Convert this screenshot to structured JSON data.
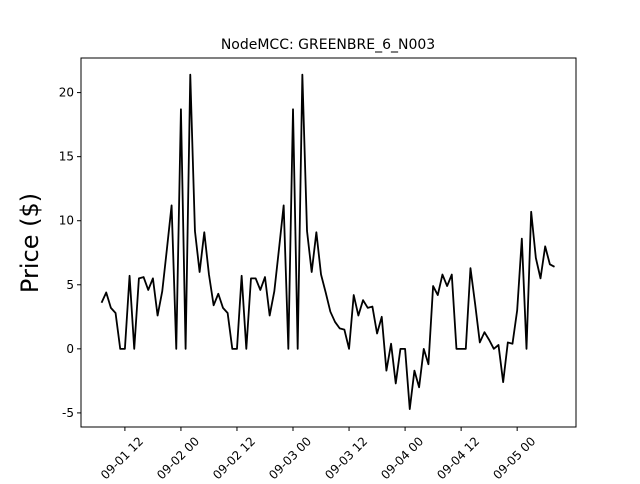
{
  "chart_data": {
    "type": "line",
    "title": "NodeMCC: GREENBRE_6_N003",
    "y_label": "Price ($)",
    "x": [
      7,
      8,
      9,
      10,
      11,
      12,
      13,
      14,
      15,
      16,
      17,
      18,
      19,
      20,
      21,
      22,
      23,
      24,
      25,
      26,
      27,
      28,
      29,
      30,
      31,
      32,
      33,
      34,
      35,
      36,
      37,
      38,
      39,
      40,
      41,
      42,
      43,
      44,
      45,
      46,
      47,
      48,
      49,
      50,
      51,
      52,
      53,
      54,
      55,
      56,
      57,
      58,
      59,
      60,
      61,
      62,
      63,
      64,
      65,
      66,
      67,
      68,
      69,
      70,
      71,
      72,
      73,
      74,
      75,
      76,
      77,
      78,
      79,
      80,
      81,
      82,
      83,
      84,
      85,
      86,
      87,
      88,
      89,
      90,
      91,
      92,
      93,
      94,
      95,
      96,
      97,
      98,
      99,
      100,
      101,
      102,
      103,
      104
    ],
    "series": [
      {
        "color": "#000000",
        "values": [
          3.6,
          4.4,
          3.2,
          2.8,
          0,
          0,
          5.7,
          0,
          5.5,
          5.6,
          4.6,
          5.5,
          2.6,
          4.5,
          7.8,
          11.2,
          0,
          18.7,
          0,
          21.4,
          9.2,
          6.0,
          9.1,
          5.8,
          3.4,
          4.3,
          3.2,
          2.8,
          0,
          0,
          5.7,
          0,
          5.5,
          5.5,
          4.6,
          5.6,
          2.6,
          4.5,
          7.8,
          11.2,
          0,
          18.7,
          0,
          21.4,
          9.2,
          6.0,
          9.1,
          5.8,
          4.4,
          2.9,
          2.1,
          1.6,
          1.5,
          0,
          4.2,
          2.6,
          3.8,
          3.2,
          3.3,
          1.2,
          2.5,
          -1.7,
          0.4,
          -2.7,
          0,
          0,
          -4.7,
          -1.7,
          -3.0,
          0,
          -1.2,
          4.9,
          4.2,
          5.8,
          4.9,
          5.8,
          0,
          0,
          0,
          6.3,
          3.5,
          0.5,
          1.3,
          0.7,
          0,
          0.3,
          -2.6,
          0.5,
          0.4,
          3.0,
          8.6,
          0,
          10.7,
          7.1,
          5.5,
          8.0,
          6.6,
          6.4
        ]
      }
    ],
    "xlim": [
      2.6,
      108.6
    ],
    "xticks": [
      {
        "value": 12,
        "label": "09-01 12"
      },
      {
        "value": 24,
        "label": "09-02 00"
      },
      {
        "value": 36,
        "label": "09-02 12"
      },
      {
        "value": 48,
        "label": "09-03 00"
      },
      {
        "value": 60,
        "label": "09-03 12"
      },
      {
        "value": 72,
        "label": "09-04 00"
      },
      {
        "value": 84,
        "label": "09-04 12"
      },
      {
        "value": 96,
        "label": "09-05 00"
      }
    ],
    "ylim": [
      -6.1,
      22.7
    ],
    "yticks": [
      -5,
      0,
      5,
      10,
      15,
      20
    ]
  }
}
